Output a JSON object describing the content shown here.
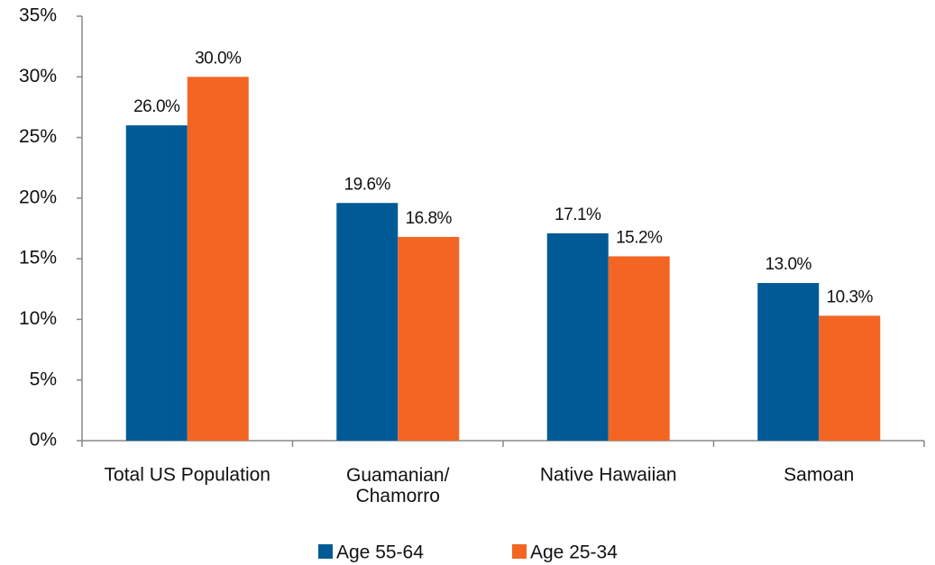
{
  "chart_data": {
    "type": "bar",
    "categories": [
      "Total US Population",
      "Guamanian/\nChamorro",
      "Native Hawaiian",
      "Samoan"
    ],
    "series": [
      {
        "name": "Age 55-64",
        "color": "#005a96",
        "values": [
          26.0,
          19.6,
          17.1,
          13.0
        ],
        "value_labels": [
          "26.0%",
          "19.6%",
          "17.1%",
          "13.0%"
        ]
      },
      {
        "name": "Age 25-34",
        "color": "#f26522",
        "values": [
          30.0,
          16.8,
          15.2,
          10.3
        ],
        "value_labels": [
          "30.0%",
          "16.8%",
          "15.2%",
          "10.3%"
        ]
      }
    ],
    "ylim": [
      0,
      35
    ],
    "yticks": [
      {
        "value": 0,
        "label": "0%"
      },
      {
        "value": 5,
        "label": "5%"
      },
      {
        "value": 10,
        "label": "10%"
      },
      {
        "value": 15,
        "label": "15%"
      },
      {
        "value": 20,
        "label": "20%"
      },
      {
        "value": 25,
        "label": "25%"
      },
      {
        "value": 30,
        "label": "30%"
      },
      {
        "value": 35,
        "label": "35%"
      }
    ],
    "grid": false,
    "legend": "bottom"
  }
}
